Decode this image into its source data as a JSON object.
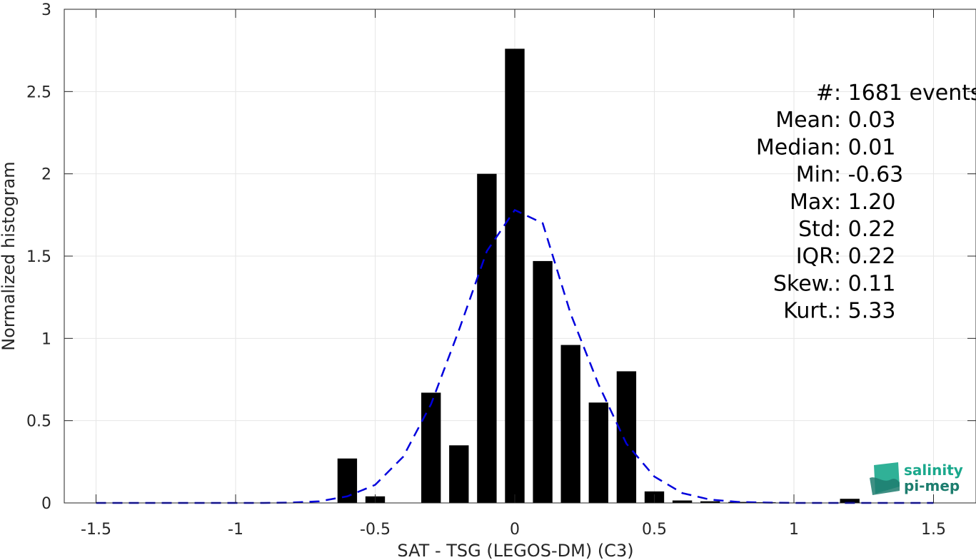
{
  "chart_data": {
    "type": "bar",
    "xlabel": "SAT - TSG (LEGOS-DM) (C3)",
    "ylabel": "Normalized histogram",
    "xlim": [
      -1.55,
      1.55
    ],
    "ylim": [
      0,
      3
    ],
    "xticks": [
      -1.5,
      -1,
      -0.5,
      0,
      0.5,
      1,
      1.5
    ],
    "xtick_labels": [
      "-1.5",
      "-1",
      "-0.5",
      "0",
      "0.5",
      "1",
      "1.5"
    ],
    "yticks": [
      0,
      0.5,
      1,
      1.5,
      2,
      2.5,
      3
    ],
    "ytick_labels": [
      "0",
      "0.5",
      "1",
      "1.5",
      "2",
      "2.5",
      "3"
    ],
    "grid": true,
    "bar_width": 0.07,
    "bars": {
      "x": [
        -0.6,
        -0.5,
        -0.4,
        -0.3,
        -0.2,
        -0.1,
        0,
        0.1,
        0.2,
        0.3,
        0.4,
        0.5,
        0.6,
        0.7,
        0.8,
        0.9,
        1.0,
        1.1,
        1.2
      ],
      "y": [
        0.27,
        0.04,
        0,
        0.67,
        0.35,
        2.0,
        2.76,
        1.47,
        0.96,
        0.61,
        0.8,
        0.07,
        0.015,
        0.01,
        0.006,
        0.004,
        0,
        0,
        0.025
      ],
      "color": "#000000"
    },
    "fit_line": {
      "style": "dashed",
      "color": "#0000dd",
      "x": [
        -1.5,
        -1.4,
        -1.3,
        -1.2,
        -1.1,
        -1.0,
        -0.9,
        -0.8,
        -0.7,
        -0.6,
        -0.5,
        -0.4,
        -0.3,
        -0.2,
        -0.1,
        0,
        0.1,
        0.2,
        0.3,
        0.4,
        0.5,
        0.6,
        0.7,
        0.8,
        0.9,
        1.0,
        1.1,
        1.2,
        1.3,
        1.4,
        1.5
      ],
      "y": [
        0,
        0,
        0,
        0,
        0,
        0,
        0,
        0.002,
        0.01,
        0.04,
        0.11,
        0.28,
        0.6,
        1.05,
        1.53,
        1.78,
        1.7,
        1.15,
        0.72,
        0.36,
        0.16,
        0.06,
        0.02,
        0.006,
        0.002,
        0,
        0,
        0,
        0,
        0,
        0
      ]
    },
    "stats": [
      {
        "label": "#  ",
        "value": ": 1681 events"
      },
      {
        "label": "Mean ",
        "value": ": 0.03"
      },
      {
        "label": "Median ",
        "value": ": 0.01"
      },
      {
        "label": "Min ",
        "value": ": -0.63"
      },
      {
        "label": "Max ",
        "value": ": 1.20"
      },
      {
        "label": "Std ",
        "value": ": 0.22"
      },
      {
        "label": "IQR ",
        "value": ": 0.22"
      },
      {
        "label": "Skew. ",
        "value": ": 0.11"
      },
      {
        "label": "Kurt. ",
        "value": ": 5.33"
      }
    ]
  },
  "logo": {
    "line1": "salinity",
    "line2": "pi-mep",
    "color_top": "#1aa88c",
    "color_bottom": "#1d7d6e"
  }
}
